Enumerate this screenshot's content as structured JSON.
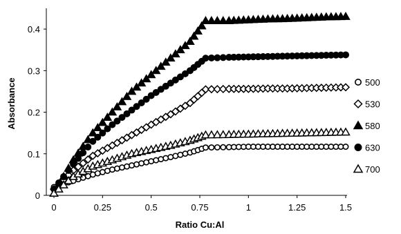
{
  "chart_data": {
    "type": "scatter",
    "xlabel": "Ratio Cu:Al",
    "ylabel": "Absorbance",
    "xlim": [
      0,
      1.5
    ],
    "ylim": [
      0,
      0.45
    ],
    "xticks": [
      "0",
      "0.25",
      "0.5",
      "0.75",
      "1",
      "1.25",
      "1.5"
    ],
    "yticks": [
      "0",
      "0.1",
      "0.2",
      "0.3",
      "0.4"
    ],
    "grid": false,
    "legend": "right",
    "series": [
      {
        "name": "500",
        "marker": "circle-open",
        "x": [
          0,
          0.1,
          0.2,
          0.3,
          0.4,
          0.5,
          0.6,
          0.7,
          0.78,
          0.9,
          1.0,
          1.1,
          1.2,
          1.3,
          1.4,
          1.5
        ],
        "y": [
          0.02,
          0.035,
          0.05,
          0.062,
          0.072,
          0.082,
          0.092,
          0.103,
          0.115,
          0.116,
          0.117,
          0.117,
          0.117,
          0.117,
          0.117,
          0.117
        ]
      },
      {
        "name": "530",
        "marker": "diamond-open",
        "x": [
          0,
          0.1,
          0.2,
          0.3,
          0.4,
          0.5,
          0.6,
          0.7,
          0.78,
          0.9,
          1.0,
          1.1,
          1.2,
          1.3,
          1.4,
          1.5
        ],
        "y": [
          0.015,
          0.06,
          0.095,
          0.12,
          0.145,
          0.17,
          0.195,
          0.222,
          0.255,
          0.256,
          0.256,
          0.257,
          0.257,
          0.258,
          0.259,
          0.26
        ]
      },
      {
        "name": "580",
        "marker": "triangle-filled",
        "x": [
          0,
          0.1,
          0.2,
          0.3,
          0.4,
          0.5,
          0.6,
          0.7,
          0.78,
          0.9,
          1.0,
          1.1,
          1.2,
          1.3,
          1.4,
          1.5
        ],
        "y": [
          0.005,
          0.085,
          0.15,
          0.2,
          0.25,
          0.29,
          0.33,
          0.37,
          0.42,
          0.42,
          0.422,
          0.424,
          0.425,
          0.427,
          0.429,
          0.43
        ]
      },
      {
        "name": "630",
        "marker": "circle-filled",
        "x": [
          0,
          0.1,
          0.2,
          0.3,
          0.4,
          0.5,
          0.6,
          0.7,
          0.78,
          0.9,
          1.0,
          1.1,
          1.2,
          1.3,
          1.4,
          1.5
        ],
        "y": [
          0.015,
          0.075,
          0.13,
          0.17,
          0.205,
          0.24,
          0.27,
          0.3,
          0.33,
          0.332,
          0.333,
          0.334,
          0.335,
          0.336,
          0.337,
          0.338
        ]
      },
      {
        "name": "700",
        "marker": "triangle-open",
        "x": [
          0,
          0.1,
          0.2,
          0.3,
          0.4,
          0.5,
          0.6,
          0.7,
          0.78,
          0.9,
          1.0,
          1.1,
          1.2,
          1.3,
          1.4,
          1.5
        ],
        "y": [
          0.005,
          0.045,
          0.07,
          0.085,
          0.1,
          0.11,
          0.12,
          0.132,
          0.145,
          0.146,
          0.147,
          0.148,
          0.149,
          0.15,
          0.151,
          0.152
        ]
      }
    ]
  }
}
